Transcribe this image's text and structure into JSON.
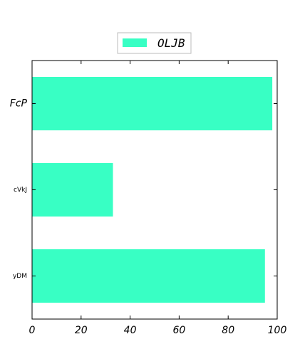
{
  "chart_data": {
    "type": "bar",
    "orientation": "horizontal",
    "categories": [
      "FcP",
      "cVkJ",
      "yDM"
    ],
    "series": [
      {
        "name": "OLJB",
        "values": [
          98,
          33,
          95
        ]
      }
    ],
    "xlim": [
      0,
      100
    ],
    "xticks": [
      0,
      20,
      40,
      60,
      80,
      100
    ],
    "title": "",
    "xlabel": "",
    "ylabel": "",
    "grid": false,
    "legend": "top-center",
    "bar_color": "#38ffc4"
  }
}
